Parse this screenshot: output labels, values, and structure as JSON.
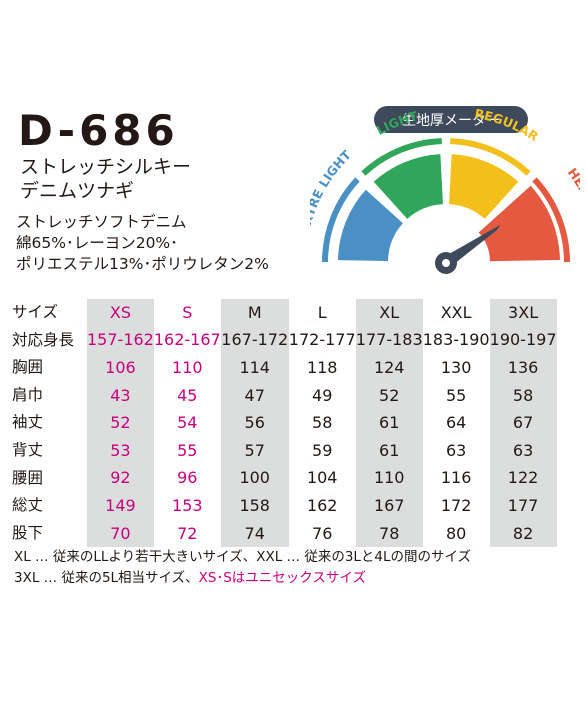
{
  "product": {
    "code": "D-686",
    "name_line1": "ストレッチシルキー",
    "name_line2": "デニムツナギ",
    "fabric_line1": "ストレッチソフトデニム",
    "fabric_line2": "綿65%･レーヨン20%･",
    "fabric_line3": "ポリエステル13%･ポリウレタン2%"
  },
  "meter": {
    "title": "生地厚メーター",
    "levels": [
      "EXTRE LIGHT",
      "LIGHT",
      "REGULAR",
      "HEAVY"
    ],
    "colors": [
      "#4a90c4",
      "#2fa65a",
      "#f3c01b",
      "#e4593f"
    ],
    "selected": "HEAVY"
  },
  "size_table": {
    "sizes": [
      "サイズ",
      "XS",
      "S",
      "M",
      "L",
      "XL",
      "XXL",
      "3XL"
    ],
    "rows": [
      {
        "label": "対応身長",
        "values": [
          "157-162",
          "162-167",
          "167-172",
          "172-177",
          "177-183",
          "183-190",
          "190-197"
        ]
      },
      {
        "label": "胸囲",
        "values": [
          "106",
          "110",
          "114",
          "118",
          "124",
          "130",
          "136"
        ]
      },
      {
        "label": "肩巾",
        "values": [
          "43",
          "45",
          "47",
          "49",
          "52",
          "55",
          "58"
        ]
      },
      {
        "label": "袖丈",
        "values": [
          "52",
          "54",
          "56",
          "58",
          "61",
          "64",
          "67"
        ]
      },
      {
        "label": "背丈",
        "values": [
          "53",
          "55",
          "57",
          "59",
          "61",
          "63",
          "63"
        ]
      },
      {
        "label": "腰囲",
        "values": [
          "92",
          "96",
          "100",
          "104",
          "110",
          "116",
          "122"
        ]
      },
      {
        "label": "総丈",
        "values": [
          "149",
          "153",
          "158",
          "162",
          "167",
          "172",
          "177"
        ]
      },
      {
        "label": "股下",
        "values": [
          "70",
          "72",
          "74",
          "76",
          "78",
          "80",
          "82"
        ]
      }
    ]
  },
  "notes": {
    "line1": "XL … 従来のLLより若干大きいサイズ、XXL … 従来の3Lと4Lの間のサイズ",
    "line2_plain": "3XL … 従来の5L相当サイズ、",
    "line2_pink": "XS･Sはユニセックスサイズ"
  },
  "colors": {
    "accent_pink": "#c7007d",
    "gray_col": "#dcdddd",
    "badge": "#3e4a5c"
  }
}
